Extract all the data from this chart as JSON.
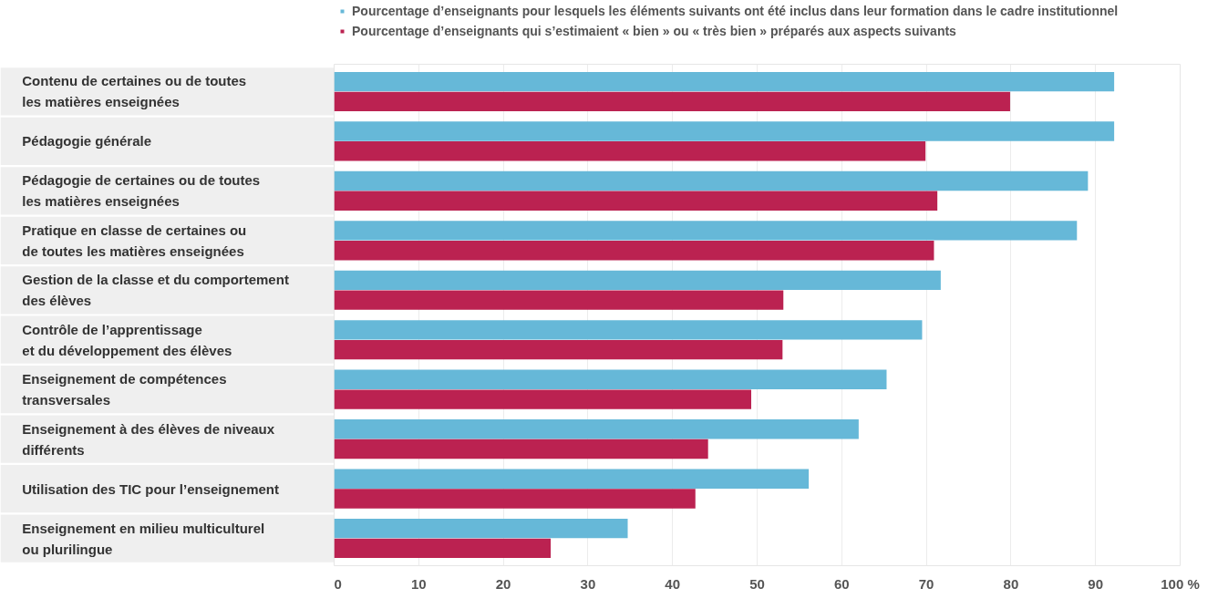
{
  "chart_data": {
    "type": "bar",
    "orientation": "horizontal",
    "categories": [
      "Contenu de certaines ou de toutes\nles matières enseignées",
      "Pédagogie générale",
      "Pédagogie de certaines ou de toutes\nles matières enseignées",
      "Pratique en classe de certaines ou\nde toutes les matières enseignées",
      "Gestion de la classe et du comportement\ndes élèves",
      "Contrôle de l’apprentissage\net du développement des élèves",
      "Enseignement de compétences\ntransversales",
      "Enseignement à des élèves de niveaux\ndifférents",
      "Utilisation des TIC pour l’enseignement",
      "Enseignement en milieu multiculturel\nou plurilingue"
    ],
    "series": [
      {
        "name": "Pourcentage d’enseignants pour lesquels les éléments suivants ont été inclus dans leur formation dans le cadre institutionnel",
        "color": "#66b8d8",
        "values": [
          92.2,
          92.2,
          89.1,
          87.8,
          71.7,
          69.5,
          65.3,
          62.0,
          56.1,
          34.7
        ]
      },
      {
        "name": "Pourcentage d’enseignants qui s’estimaient « bien » ou « très bien » préparés aux aspects suivants",
        "color": "#bb2251",
        "values": [
          79.9,
          69.9,
          71.3,
          70.9,
          53.1,
          53.0,
          49.3,
          44.2,
          42.7,
          25.6
        ]
      }
    ],
    "xlim": [
      0,
      100
    ],
    "xticks": [
      0,
      10,
      20,
      30,
      40,
      50,
      60,
      70,
      80,
      90,
      {
        "value": 100,
        "label": "100 %"
      }
    ],
    "grid": "x",
    "legend": "top"
  }
}
